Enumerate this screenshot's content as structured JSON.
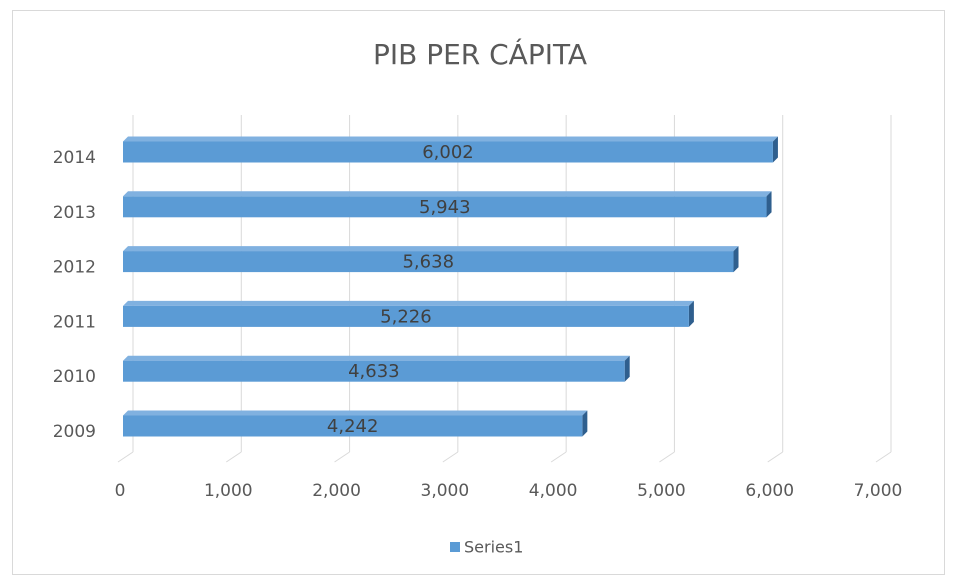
{
  "chart_data": {
    "type": "bar3d_horizontal",
    "title": "PIB PER CÁPITA",
    "categories": [
      "2009",
      "2010",
      "2011",
      "2012",
      "2013",
      "2014"
    ],
    "series": [
      {
        "name": "Series1",
        "color": "#5b9bd5",
        "values": [
          4242,
          4633,
          5226,
          5638,
          5943,
          6002
        ],
        "value_labels": [
          "4,242",
          "4,633",
          "5,226",
          "5,638",
          "5,943",
          "6,002"
        ]
      }
    ],
    "xlim": [
      0,
      7000
    ],
    "xticks": [
      0,
      {
        "value": 1000,
        "label": "1,000"
      },
      {
        "value": 2000,
        "label": "2,000"
      },
      {
        "value": 3000,
        "label": "3,000"
      },
      {
        "value": 4000,
        "label": "4,000"
      },
      {
        "value": 5000,
        "label": "5,000"
      },
      {
        "value": 6000,
        "label": "6,000"
      },
      {
        "value": 7000,
        "label": "7,000"
      }
    ],
    "grid": true,
    "legend": "bottom"
  }
}
